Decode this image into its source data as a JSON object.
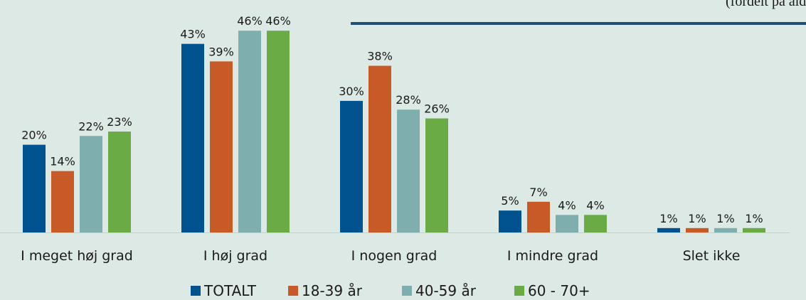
{
  "chart_data": {
    "type": "bar",
    "subtitle": "(fordelt på alder",
    "categories": [
      "I meget høj grad",
      "I høj grad",
      "I nogen grad",
      "I mindre grad",
      "Slet ikke"
    ],
    "series": [
      {
        "name": "TOTALT",
        "color": "#00538f",
        "values": [
          20,
          43,
          30,
          5,
          1
        ],
        "value_labels": [
          "20%",
          "43%",
          "30%",
          "5%",
          "1%"
        ]
      },
      {
        "name": "18-39 år",
        "color": "#c85a27",
        "values": [
          14,
          39,
          38,
          7,
          1
        ],
        "value_labels": [
          "14%",
          "39%",
          "38%",
          "7%",
          "1%"
        ]
      },
      {
        "name": "40-59 år",
        "color": "#7eaead",
        "values": [
          22,
          46,
          28,
          4,
          1
        ],
        "value_labels": [
          "22%",
          "46%",
          "28%",
          "4%",
          "1%"
        ]
      },
      {
        "name": "60 - 70+",
        "color": "#6aab46",
        "values": [
          23,
          46,
          26,
          4,
          1
        ],
        "value_labels": [
          "23%",
          "46%",
          "26%",
          "4%",
          "1%"
        ]
      }
    ]
  }
}
